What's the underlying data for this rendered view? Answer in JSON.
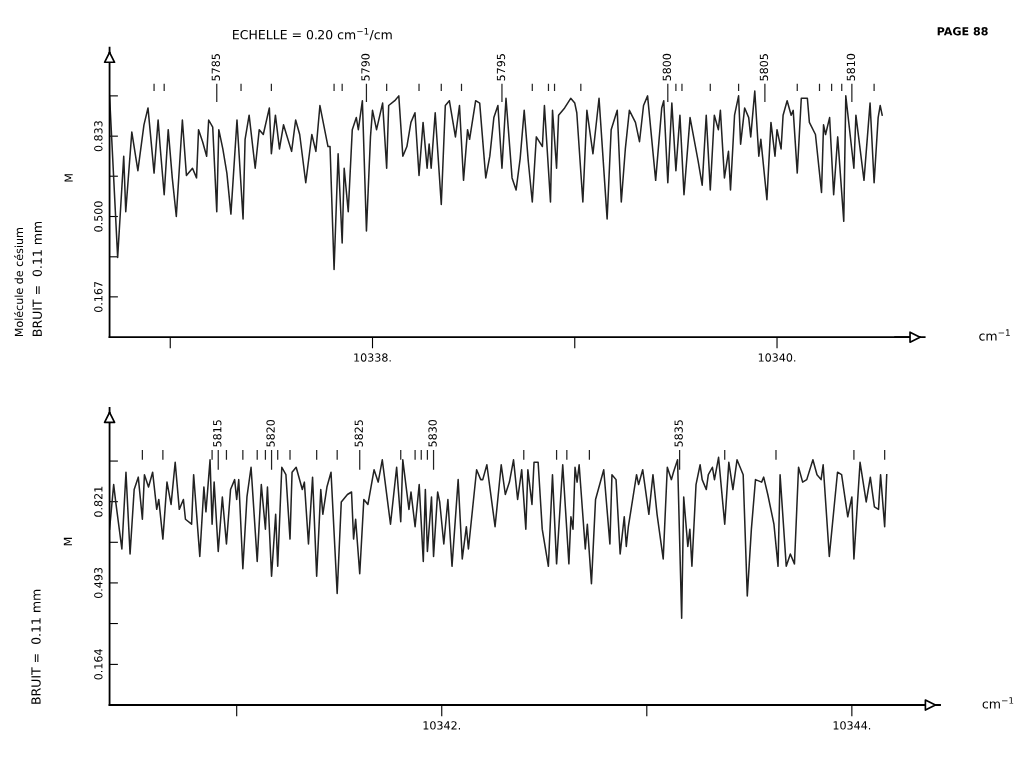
{
  "chart_data": [
    {
      "type": "line",
      "title": "ECHELLE = 0.20 cm$^{−1}$/cm",
      "xlabel": "cm$^{−1}$",
      "ylabel": "BRUIT =  0.11 mm",
      "annotations": [
        "M",
        "Molécule de césium",
        "PAGE 88",
        {
          "text": "5785",
          "x": 10337.23,
          "y": 1.06
        },
        {
          "text": "5790",
          "x": 10337.97,
          "y": 1.06
        },
        {
          "text": "5795",
          "x": 10338.64,
          "y": 1.06
        },
        {
          "text": "5800",
          "x": 10339.46,
          "y": 1.06
        },
        {
          "text": "5805",
          "x": 10339.94,
          "y": 1.06
        },
        {
          "text": "5810",
          "x": 10340.37,
          "y": 1.06
        }
      ],
      "xlim": [
        10336.7,
        10340.73
      ],
      "ylim": [
        0,
        1.2
      ],
      "xticks": [
        {
          "value": 10337,
          "label": null
        },
        {
          "value": 10338,
          "label": "10338."
        },
        {
          "value": 10339,
          "label": null
        },
        {
          "value": 10340,
          "label": "10340."
        }
      ],
      "yticks": [
        0.167,
        {
          "value": 0.333,
          "label": null
        },
        {
          "value": 0.5,
          "label": "0.500"
        },
        {
          "value": 0.667,
          "label": null
        },
        0.833,
        {
          "value": 1.0,
          "label": null
        }
      ],
      "series": [
        {
          "color": "#222222",
          "x": [
            10336.7,
            10336.74,
            10336.77,
            10336.78,
            10336.81,
            10336.84,
            10336.87,
            10336.89,
            10336.92,
            10336.94,
            10336.95,
            10336.97,
            10336.99,
            10337.01,
            10337.03,
            10337.06,
            10337.08,
            10337.11,
            10337.13,
            10337.14,
            10337.16,
            10337.18,
            10337.19,
            10337.21,
            10337.23,
            10337.24,
            10337.26,
            10337.28,
            10337.3,
            10337.33,
            10337.36,
            10337.37,
            10337.39,
            10337.42,
            10337.44,
            10337.46,
            10337.49,
            10337.5,
            10337.52,
            10337.54,
            10337.56,
            10337.6,
            10337.62,
            10337.64,
            10337.67,
            10337.7,
            10337.72,
            10337.74,
            10337.78,
            10337.79,
            10337.81,
            10337.83,
            10337.85,
            10337.86,
            10337.88,
            10337.9,
            10337.92,
            10337.93,
            10337.95,
            10337.97,
            10337.99,
            10338.0,
            10338.02,
            10338.05,
            10338.07,
            10338.08,
            10338.11,
            10338.13,
            10338.15,
            10338.17,
            10338.19,
            10338.21,
            10338.23,
            10338.25,
            10338.27,
            10338.28,
            10338.29,
            10338.31,
            10338.34,
            10338.36,
            10338.38,
            10338.41,
            10338.43,
            10338.45,
            10338.47,
            10338.48,
            10338.51,
            10338.53,
            10338.56,
            10338.58,
            10338.6,
            10338.62,
            10338.64,
            10338.66,
            10338.69,
            10338.71,
            10338.73,
            10338.75,
            10338.77,
            10338.79,
            10338.81,
            10338.84,
            10338.85,
            10338.88,
            10338.89,
            10338.91,
            10338.92,
            10338.95,
            10338.98,
            10339.0,
            10339.01,
            10339.04,
            10339.06,
            10339.09,
            10339.12,
            10339.16,
            10339.18,
            10339.21,
            10339.23,
            10339.25,
            10339.27,
            10339.3,
            10339.32,
            10339.34,
            10339.36,
            10339.4,
            10339.43,
            10339.44,
            10339.46,
            10339.48,
            10339.5,
            10339.52,
            10339.54,
            10339.57,
            10339.61,
            10339.63,
            10339.65,
            10339.67,
            10339.69,
            10339.71,
            10339.72,
            10339.74,
            10339.76,
            10339.77,
            10339.79,
            10339.81,
            10339.82,
            10339.84,
            10339.86,
            10339.87,
            10339.89,
            10339.91,
            10339.92,
            10339.95,
            10339.97,
            10339.99,
            10340.0,
            10340.02,
            10340.03,
            10340.05,
            10340.07,
            10340.08,
            10340.1,
            10340.12,
            10340.15,
            10340.16,
            10340.19,
            10340.22,
            10340.23,
            10340.24,
            10340.26,
            10340.28,
            10340.3,
            10340.33,
            10340.34,
            10340.38,
            10340.39,
            10340.43,
            10340.46,
            10340.48,
            10340.5,
            10340.51,
            10340.52
          ],
          "values": [
            1.0,
            0.33,
            0.75,
            0.52,
            0.85,
            0.69,
            0.88,
            0.95,
            0.68,
            0.9,
            0.79,
            0.59,
            0.86,
            0.66,
            0.5,
            0.9,
            0.67,
            0.7,
            0.66,
            0.86,
            0.81,
            0.75,
            0.9,
            0.87,
            0.52,
            0.86,
            0.78,
            0.68,
            0.51,
            0.9,
            0.49,
            0.82,
            0.92,
            0.7,
            0.86,
            0.84,
            0.95,
            0.76,
            0.92,
            0.78,
            0.88,
            0.77,
            0.9,
            0.84,
            0.64,
            0.84,
            0.77,
            0.96,
            0.79,
            0.79,
            0.28,
            0.76,
            0.39,
            0.7,
            0.52,
            0.86,
            0.91,
            0.86,
            0.98,
            0.44,
            0.83,
            0.94,
            0.86,
            0.97,
            0.7,
            0.96,
            0.98,
            1.0,
            0.75,
            0.79,
            0.89,
            0.93,
            0.67,
            0.89,
            0.7,
            0.8,
            0.7,
            0.93,
            0.55,
            0.96,
            0.98,
            0.83,
            0.96,
            0.65,
            0.86,
            0.82,
            0.98,
            0.97,
            0.66,
            0.75,
            0.91,
            0.96,
            0.7,
            0.99,
            0.66,
            0.61,
            0.74,
            0.94,
            0.73,
            0.56,
            0.83,
            0.79,
            0.96,
            0.56,
            0.94,
            0.7,
            0.92,
            0.95,
            0.99,
            0.97,
            0.93,
            0.56,
            0.94,
            0.76,
            0.99,
            0.49,
            0.86,
            0.94,
            0.56,
            0.78,
            0.94,
            0.89,
            0.81,
            0.96,
            1.0,
            0.65,
            0.95,
            0.98,
            0.64,
            0.97,
            0.69,
            0.92,
            0.59,
            0.91,
            0.73,
            0.63,
            0.92,
            0.61,
            0.92,
            0.86,
            0.94,
            0.66,
            0.77,
            0.61,
            0.92,
            1.0,
            0.8,
            0.95,
            0.91,
            0.83,
            1.02,
            0.75,
            0.82,
            0.57,
            0.89,
            0.75,
            0.86,
            0.78,
            0.92,
            0.98,
            0.92,
            0.94,
            0.68,
            0.99,
            0.99,
            0.89,
            0.84,
            0.6,
            0.88,
            0.84,
            0.91,
            0.59,
            0.83,
            0.48,
            1.0,
            0.7,
            0.92,
            0.65,
            0.97,
            0.64,
            0.91,
            0.96,
            0.92
          ]
        },
        {
          "type": "bar",
          "color": "#222222",
          "x": [
            10336.92,
            10336.97,
            10337.35,
            10337.5,
            10337.81,
            10337.85,
            10338.07,
            10338.23,
            10338.34,
            10338.44,
            10338.79,
            10338.87,
            10338.9,
            10339.03,
            10339.5,
            10339.53,
            10339.67,
            10339.81,
            10340.1,
            10340.21,
            10340.27,
            10340.32,
            10340.48
          ],
          "base": [
            1.02,
            1.02,
            1.02,
            1.02,
            1.02,
            1.02,
            1.02,
            1.02,
            1.02,
            1.02,
            1.02,
            1.02,
            1.02,
            1.02,
            1.02,
            1.02,
            1.02,
            1.02,
            1.02,
            1.02,
            1.02,
            1.02,
            1.02
          ],
          "values": [
            0.03,
            0.03,
            0.03,
            0.03,
            0.03,
            0.03,
            0.03,
            0.03,
            0.03,
            0.03,
            0.03,
            0.03,
            0.03,
            0.03,
            0.03,
            0.03,
            0.03,
            0.03,
            0.03,
            0.03,
            0.03,
            0.03,
            0.03
          ]
        },
        {
          "type": "bar",
          "color": "#222222",
          "x": [
            10337.23,
            10337.97,
            10338.64,
            10339.46,
            10339.94,
            10340.37
          ],
          "base": [
            0.975,
            0.975,
            0.975,
            0.975,
            0.975,
            0.975
          ],
          "values": [
            0.075,
            0.075,
            0.075,
            0.075,
            0.075,
            0.075
          ]
        }
      ]
    },
    {
      "type": "line",
      "xlabel": "cm$^{−1}$",
      "ylabel": "BRUIT =  0.11 mm",
      "annotations": [
        "M",
        {
          "text": "5815",
          "x": 10340.91,
          "y": 1.04
        },
        {
          "text": "5820",
          "x": 10341.17,
          "y": 1.04
        },
        {
          "text": "5825",
          "x": 10341.6,
          "y": 1.04
        },
        {
          "text": "5830",
          "x": 10341.96,
          "y": 1.04
        },
        {
          "text": "5835",
          "x": 10343.16,
          "y": 1.04
        }
      ],
      "xlim": [
        10340.38,
        10344.43
      ],
      "ylim": [
        0,
        1.2
      ],
      "xticks": [
        {
          "value": 10341,
          "label": null
        },
        {
          "value": 10342,
          "label": "10342."
        },
        {
          "value": 10343,
          "label": null
        },
        {
          "value": 10344,
          "label": "10344."
        }
      ],
      "yticks": [
        0.164,
        {
          "value": 0.329,
          "label": null
        },
        0.493,
        {
          "value": 0.657,
          "label": null
        },
        0.821,
        {
          "value": 0.985,
          "label": null
        }
      ],
      "series": [
        {
          "color": "#222222",
          "x": [
            10340.38,
            10340.4,
            10340.41,
            10340.44,
            10340.46,
            10340.48,
            10340.5,
            10340.52,
            10340.54,
            10340.55,
            10340.57,
            10340.59,
            10340.61,
            10340.62,
            10340.64,
            10340.66,
            10340.68,
            10340.7,
            10340.72,
            10340.74,
            10340.75,
            10340.78,
            10340.79,
            10340.82,
            10340.84,
            10340.85,
            10340.87,
            10340.88,
            10340.89,
            10340.91,
            10340.93,
            10340.95,
            10340.97,
            10340.99,
            10341.0,
            10341.01,
            10341.03,
            10341.05,
            10341.07,
            10341.1,
            10341.12,
            10341.14,
            10341.15,
            10341.17,
            10341.19,
            10341.2,
            10341.22,
            10341.24,
            10341.26,
            10341.27,
            10341.29,
            10341.32,
            10341.33,
            10341.35,
            10341.37,
            10341.39,
            10341.41,
            10341.42,
            10341.44,
            10341.46,
            10341.49,
            10341.51,
            10341.54,
            10341.56,
            10341.57,
            10341.58,
            10341.6,
            10341.62,
            10341.64,
            10341.67,
            10341.69,
            10341.71,
            10341.75,
            10341.78,
            10341.8,
            10341.81,
            10341.84,
            10341.85,
            10341.87,
            10341.89,
            10341.91,
            10341.92,
            10341.93,
            10341.95,
            10341.96,
            10341.98,
            10341.99,
            10342.01,
            10342.03,
            10342.05,
            10342.08,
            10342.1,
            10342.12,
            10342.13,
            10342.17,
            10342.19,
            10342.2,
            10342.22,
            10342.26,
            10342.29,
            10342.31,
            10342.33,
            10342.35,
            10342.37,
            10342.39,
            10342.41,
            10342.42,
            10342.44,
            10342.45,
            10342.47,
            10342.49,
            10342.52,
            10342.54,
            10342.56,
            10342.59,
            10342.62,
            10342.63,
            10342.64,
            10342.65,
            10342.66,
            10342.67,
            10342.7,
            10342.71,
            10342.73,
            10342.75,
            10342.79,
            10342.82,
            10342.83,
            10342.85,
            10342.87,
            10342.89,
            10342.9,
            10342.91,
            10342.95,
            10342.96,
            10342.98,
            10343.01,
            10343.03,
            10343.05,
            10343.08,
            10343.1,
            10343.12,
            10343.13,
            10343.15,
            10343.17,
            10343.18,
            10343.2,
            10343.21,
            10343.22,
            10343.24,
            10343.26,
            10343.27,
            10343.29,
            10343.3,
            10343.32,
            10343.33,
            10343.35,
            10343.38,
            10343.4,
            10343.42,
            10343.44,
            10343.47,
            10343.49,
            10343.51,
            10343.53,
            10343.56,
            10343.57,
            10343.59,
            10343.62,
            10343.64,
            10343.65,
            10343.68,
            10343.7,
            10343.72,
            10343.74,
            10343.76,
            10343.78,
            10343.81,
            10343.83,
            10343.85,
            10343.86,
            10343.89,
            10343.93,
            10343.95,
            10343.98,
            10344.0,
            10344.01,
            10344.04,
            10344.07,
            10344.09,
            10344.11,
            10344.13,
            10344.14,
            10344.16,
            10344.17
          ],
          "values": [
            0.71,
            0.89,
            0.82,
            0.63,
            0.94,
            0.61,
            0.87,
            0.92,
            0.75,
            0.93,
            0.88,
            0.94,
            0.79,
            0.83,
            0.67,
            0.9,
            0.81,
            0.98,
            0.79,
            0.83,
            0.75,
            0.73,
            0.93,
            0.6,
            0.88,
            0.78,
            0.99,
            0.73,
            0.9,
            0.62,
            0.84,
            0.65,
            0.87,
            0.91,
            0.83,
            0.91,
            0.55,
            0.84,
            0.96,
            0.58,
            0.89,
            0.71,
            0.88,
            0.52,
            0.77,
            0.56,
            0.96,
            0.93,
            0.67,
            0.94,
            0.96,
            0.87,
            0.9,
            0.65,
            0.92,
            0.52,
            0.87,
            0.77,
            0.88,
            0.94,
            0.45,
            0.82,
            0.85,
            0.86,
            0.67,
            0.75,
            0.53,
            0.83,
            0.81,
            0.95,
            0.9,
            0.99,
            0.73,
            0.96,
            0.74,
            0.99,
            0.79,
            0.86,
            0.72,
            0.89,
            0.58,
            0.87,
            0.62,
            0.84,
            0.6,
            0.86,
            0.82,
            0.65,
            0.83,
            0.56,
            0.91,
            0.59,
            0.72,
            0.63,
            0.95,
            0.91,
            0.91,
            0.97,
            0.72,
            0.97,
            0.85,
            0.9,
            0.99,
            0.83,
            0.95,
            0.71,
            0.95,
            0.81,
            0.98,
            0.98,
            0.71,
            0.56,
            0.93,
            0.57,
            0.97,
            0.57,
            0.76,
            0.71,
            0.96,
            0.9,
            0.97,
            0.63,
            0.73,
            0.49,
            0.83,
            0.95,
            0.65,
            0.93,
            0.91,
            0.61,
            0.76,
            0.64,
            0.72,
            0.93,
            0.89,
            0.95,
            0.77,
            0.93,
            0.77,
            0.59,
            0.96,
            0.91,
            0.94,
            0.99,
            0.35,
            0.84,
            0.64,
            0.71,
            0.56,
            0.89,
            0.97,
            0.91,
            0.87,
            0.93,
            0.96,
            0.91,
            1.0,
            0.73,
            0.98,
            0.87,
            0.99,
            0.93,
            0.44,
            0.71,
            0.91,
            0.9,
            0.92,
            0.85,
            0.73,
            0.56,
            0.93,
            0.56,
            0.61,
            0.57,
            0.96,
            0.9,
            0.91,
            0.99,
            0.93,
            0.91,
            0.97,
            0.6,
            0.94,
            0.93,
            0.76,
            0.84,
            0.59,
            0.98,
            0.82,
            0.92,
            0.8,
            0.79,
            0.93,
            0.72,
            0.93
          ]
        },
        {
          "type": "bar",
          "color": "#222222",
          "x": [
            10340.54,
            10340.64,
            10340.88,
            10340.95,
            10341.03,
            10341.1,
            10341.14,
            10341.2,
            10341.26,
            10341.39,
            10341.49,
            10341.8,
            10341.87,
            10341.9,
            10341.93,
            10342.4,
            10342.56,
            10342.61,
            10342.72,
            10343.38,
            10343.63,
            10344.01,
            10344.16
          ],
          "base": [
            0.99,
            0.99,
            0.99,
            0.99,
            0.99,
            0.99,
            0.99,
            0.99,
            0.99,
            0.99,
            0.99,
            0.99,
            0.99,
            0.99,
            0.99,
            0.99,
            0.99,
            0.99,
            0.99,
            0.99,
            0.99,
            0.99,
            0.99
          ],
          "values": [
            0.04,
            0.04,
            0.04,
            0.04,
            0.04,
            0.04,
            0.04,
            0.04,
            0.04,
            0.04,
            0.04,
            0.04,
            0.04,
            0.04,
            0.04,
            0.04,
            0.04,
            0.04,
            0.04,
            0.04,
            0.04,
            0.04,
            0.04
          ]
        },
        {
          "type": "bar",
          "color": "#222222",
          "x": [
            10340.91,
            10341.17,
            10341.6,
            10341.96,
            10343.16
          ],
          "base": [
            0.95,
            0.95,
            0.95,
            0.95,
            0.95
          ],
          "values": [
            0.08,
            0.08,
            0.08,
            0.08,
            0.08
          ]
        }
      ]
    }
  ]
}
